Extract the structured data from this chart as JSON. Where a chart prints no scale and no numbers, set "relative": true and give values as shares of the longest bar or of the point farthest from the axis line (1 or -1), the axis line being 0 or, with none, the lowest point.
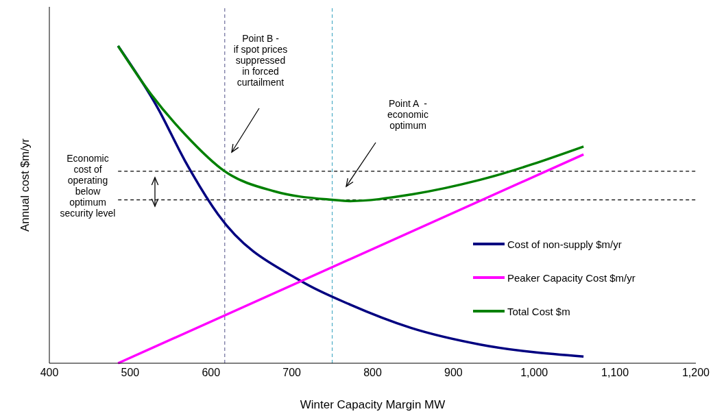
{
  "chart_data": {
    "type": "line",
    "relative": true,
    "xlabel": "Winter Capacity  Margin MW",
    "ylabel": "Annual cost $m/yr",
    "xlim": [
      400,
      1200
    ],
    "xticks": [
      400,
      500,
      600,
      700,
      800,
      900,
      {
        "value": 1000,
        "label": "1,000"
      },
      {
        "value": 1100,
        "label": "1,100"
      },
      {
        "value": 1200,
        "label": "1,200"
      }
    ],
    "legend": "right",
    "marker": "none",
    "line_style": "solid",
    "series": [
      {
        "name": "Cost of non-supply $m/yr",
        "color": "#000080",
        "x": [
          485,
          534,
          568,
          609,
          712,
          772,
          848,
          933,
          1061
        ],
        "values": [
          1.0,
          0.805,
          0.637,
          0.468,
          0.258,
          0.185,
          0.111,
          0.059,
          0.021
        ]
      },
      {
        "name": "Peaker Capacity Cost $m/yr",
        "color": "#ff00ff",
        "x": [
          485,
          1061
        ],
        "values": [
          0,
          0.658
        ]
      },
      {
        "name": "Total Cost $m",
        "color": "#008000",
        "x": [
          485,
          526,
          568,
          617,
          678,
          750,
          772,
          848,
          933,
          1061
        ],
        "values": [
          1.0,
          0.847,
          0.721,
          0.605,
          0.542,
          0.515,
          0.511,
          0.532,
          0.578,
          0.683
        ]
      }
    ],
    "ref_lines": [
      {
        "axis": "x",
        "value": 617,
        "color": "#6b6b9a",
        "line_style": "dashed"
      },
      {
        "axis": "x",
        "value": 750,
        "color": "#4bacc6",
        "line_style": "dashed"
      },
      {
        "axis": "y",
        "value": 0.605,
        "color": "#000000",
        "line_style": "dashed"
      },
      {
        "axis": "y",
        "value": 0.515,
        "color": "#000000",
        "line_style": "dashed"
      }
    ],
    "annotations": [
      "Point B -\nif spot prices\nsuppressed\nin forced\ncurtailment",
      "Point A  -\neconomic\noptimum",
      "Economic\ncost of\noperating\nbelow\noptimum\nsecurity level"
    ]
  }
}
